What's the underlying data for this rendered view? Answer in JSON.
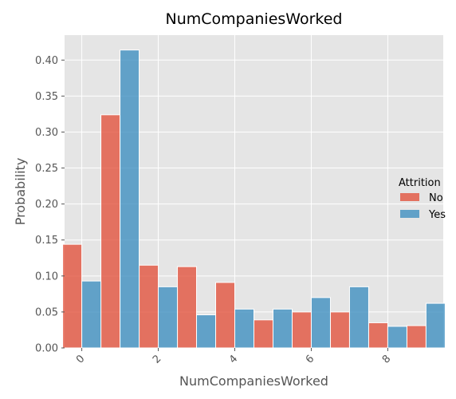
{
  "chart_data": {
    "type": "bar",
    "title": "NumCompaniesWorked",
    "xlabel": "NumCompaniesWorked",
    "ylabel": "Probability",
    "xlim": [
      -0.45,
      9.45
    ],
    "ylim": [
      0,
      0.4347
    ],
    "x_ticks": [
      0,
      2,
      4,
      6,
      8
    ],
    "y_ticks": [
      0.0,
      0.05,
      0.1,
      0.15,
      0.2,
      0.25,
      0.3,
      0.35,
      0.4
    ],
    "grid": true,
    "legend_title": "Attrition",
    "legend_placement": "center-right outside",
    "series": [
      {
        "name": "No",
        "color": "#E24A33",
        "x": [
          0,
          1,
          2,
          3,
          4,
          5,
          6,
          7,
          8,
          9
        ],
        "values": [
          0.144,
          0.324,
          0.115,
          0.113,
          0.091,
          0.039,
          0.05,
          0.05,
          0.035,
          0.031
        ]
      },
      {
        "name": "Yes",
        "color": "#348ABD",
        "x": [
          0,
          1,
          2,
          3,
          4,
          5,
          6,
          7,
          8,
          9
        ],
        "values": [
          0.093,
          0.414,
          0.085,
          0.046,
          0.054,
          0.054,
          0.07,
          0.085,
          0.03,
          0.062
        ]
      }
    ]
  }
}
